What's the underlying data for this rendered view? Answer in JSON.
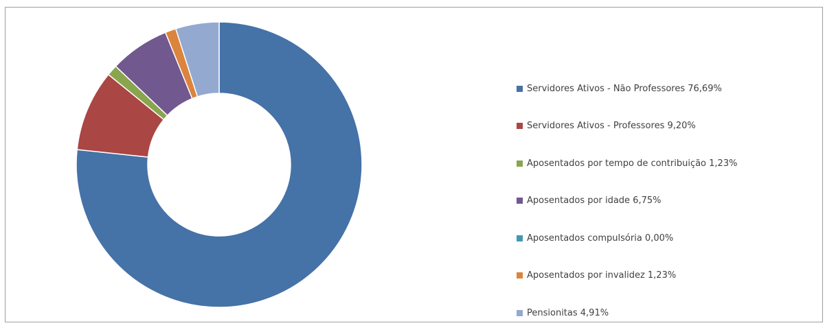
{
  "chart_data": {
    "type": "donut",
    "legend_position": "right",
    "start_angle_deg": 0,
    "direction": "clockwise",
    "slices": [
      {
        "label": "Servidores Ativos - Não Professores 76,69%",
        "value": 76.69,
        "color": "#4572a7"
      },
      {
        "label": "Servidores Ativos - Professores 9,20%",
        "value": 9.2,
        "color": "#aa4643"
      },
      {
        "label": "Aposentados por tempo de contribuição 1,23%",
        "value": 1.23,
        "color": "#89a54e"
      },
      {
        "label": "Aposentados por idade 6,75%",
        "value": 6.75,
        "color": "#71588f"
      },
      {
        "label": "Aposentados compulsória 0,00%",
        "value": 0.0,
        "color": "#4198af"
      },
      {
        "label": "Aposentados por invalidez 1,23%",
        "value": 1.23,
        "color": "#db843d"
      },
      {
        "label": "Pensionitas 4,91%",
        "value": 4.91,
        "color": "#93a9cf"
      }
    ]
  }
}
